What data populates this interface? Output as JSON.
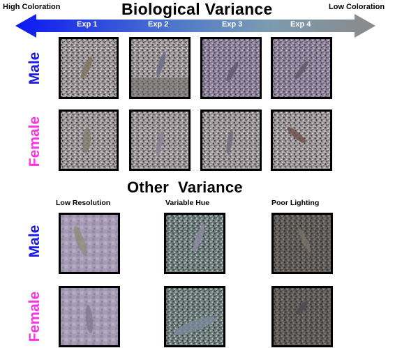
{
  "colors": {
    "arrow_left": "#0a17f5",
    "arrow_right": "#8a8a8a",
    "male": "#1a1ae6",
    "female": "#ff33e6"
  },
  "header": {
    "title": "Biological Variance",
    "left_label": "High Coloration",
    "right_label": "Low Coloration",
    "experiments": [
      "Exp 1",
      "Exp 2",
      "Exp 3",
      "Exp 4"
    ]
  },
  "bio_rows": [
    "Male",
    "Female"
  ],
  "other": {
    "title": "Other  Variance",
    "columns": [
      "Low Resolution",
      "Variable Hue",
      "Poor Lighting"
    ],
    "rows": [
      "Male",
      "Female"
    ]
  }
}
